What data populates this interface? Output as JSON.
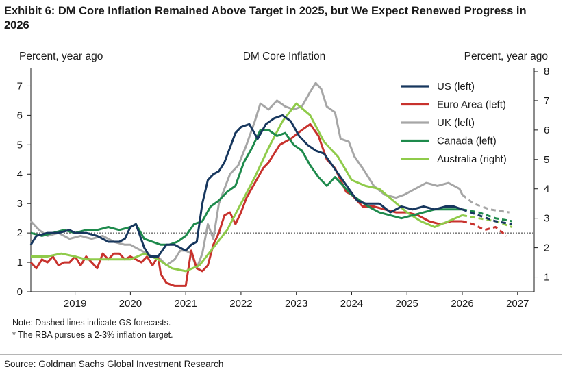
{
  "header": {
    "title": "Exhibit 6: DM Core Inflation Remained Above Target in 2025, but We Expect Renewed Progress in 2026"
  },
  "footer": {
    "source": "Source: Goldman Sachs Global Investment Research"
  },
  "notes": [
    "Note: Dashed lines indicate GS forecasts.",
    "* The RBA pursues a 2-3% inflation target."
  ],
  "colors": {
    "US": "#17375e",
    "Euro Area": "#c8322d",
    "UK": "#a6a6a6",
    "Canada": "#1e8a4c",
    "Australia": "#8fcb4a"
  },
  "chart_data": {
    "type": "line",
    "title": "DM Core Inflation",
    "ylabel_left": "Percent, year ago",
    "ylabel_right": "Percent, year ago",
    "x_ticks": [
      "2019",
      "2020",
      "2021",
      "2022",
      "2023",
      "2024",
      "2025",
      "2026",
      "2027"
    ],
    "xlim": [
      2018.2,
      2027.3
    ],
    "ylim_left": [
      0,
      7.5
    ],
    "ylim_right": [
      0.5,
      8
    ],
    "y_ticks_left": [
      0,
      1,
      2,
      3,
      4,
      5,
      6,
      7
    ],
    "y_ticks_right": [
      1,
      2,
      3,
      4,
      5,
      6,
      7,
      8
    ],
    "reference_line": {
      "axis": "left",
      "value": 2,
      "style": "dotted"
    },
    "legend_position": "top-right",
    "series": [
      {
        "name": "US (left)",
        "axis": "left",
        "color": "#17375e",
        "points": [
          [
            2018.2,
            1.6
          ],
          [
            2018.3,
            1.9
          ],
          [
            2018.5,
            2.0
          ],
          [
            2018.7,
            2.0
          ],
          [
            2018.9,
            2.1
          ],
          [
            2019.0,
            2.0
          ],
          [
            2019.2,
            2.0
          ],
          [
            2019.4,
            1.9
          ],
          [
            2019.6,
            1.7
          ],
          [
            2019.8,
            1.7
          ],
          [
            2019.9,
            1.8
          ],
          [
            2020.0,
            2.2
          ],
          [
            2020.1,
            2.3
          ],
          [
            2020.25,
            1.5
          ],
          [
            2020.35,
            1.2
          ],
          [
            2020.5,
            1.2
          ],
          [
            2020.65,
            1.6
          ],
          [
            2020.8,
            1.6
          ],
          [
            2021.0,
            1.4
          ],
          [
            2021.1,
            1.6
          ],
          [
            2021.2,
            1.7
          ],
          [
            2021.3,
            3.0
          ],
          [
            2021.4,
            3.8
          ],
          [
            2021.5,
            4.0
          ],
          [
            2021.6,
            4.1
          ],
          [
            2021.7,
            4.4
          ],
          [
            2021.8,
            4.9
          ],
          [
            2021.9,
            5.4
          ],
          [
            2022.0,
            5.6
          ],
          [
            2022.15,
            5.7
          ],
          [
            2022.3,
            5.2
          ],
          [
            2022.45,
            5.7
          ],
          [
            2022.6,
            5.9
          ],
          [
            2022.75,
            6.0
          ],
          [
            2022.9,
            5.8
          ],
          [
            2023.05,
            5.3
          ],
          [
            2023.2,
            5.0
          ],
          [
            2023.35,
            4.8
          ],
          [
            2023.5,
            4.7
          ],
          [
            2023.65,
            4.3
          ],
          [
            2023.8,
            3.9
          ],
          [
            2023.95,
            3.5
          ],
          [
            2024.1,
            3.1
          ],
          [
            2024.25,
            3.0
          ],
          [
            2024.5,
            3.0
          ],
          [
            2024.7,
            2.7
          ],
          [
            2024.9,
            2.9
          ],
          [
            2025.1,
            2.8
          ],
          [
            2025.3,
            2.9
          ],
          [
            2025.5,
            2.8
          ],
          [
            2025.7,
            2.9
          ],
          [
            2025.85,
            2.9
          ],
          [
            2026.0,
            2.8
          ]
        ],
        "forecast": [
          [
            2026.0,
            2.8
          ],
          [
            2026.3,
            2.6
          ],
          [
            2026.6,
            2.4
          ],
          [
            2026.9,
            2.3
          ]
        ]
      },
      {
        "name": "Euro Area (left)",
        "axis": "left",
        "color": "#c8322d",
        "points": [
          [
            2018.2,
            1.0
          ],
          [
            2018.3,
            0.8
          ],
          [
            2018.4,
            1.1
          ],
          [
            2018.5,
            1.0
          ],
          [
            2018.6,
            1.2
          ],
          [
            2018.7,
            0.9
          ],
          [
            2018.8,
            1.0
          ],
          [
            2018.9,
            1.0
          ],
          [
            2019.0,
            1.2
          ],
          [
            2019.1,
            0.9
          ],
          [
            2019.2,
            1.2
          ],
          [
            2019.3,
            1.0
          ],
          [
            2019.4,
            0.8
          ],
          [
            2019.5,
            1.3
          ],
          [
            2019.6,
            1.1
          ],
          [
            2019.7,
            1.3
          ],
          [
            2019.8,
            1.3
          ],
          [
            2019.9,
            1.1
          ],
          [
            2020.0,
            1.2
          ],
          [
            2020.1,
            1.1
          ],
          [
            2020.2,
            1.0
          ],
          [
            2020.3,
            1.2
          ],
          [
            2020.4,
            0.9
          ],
          [
            2020.5,
            1.2
          ],
          [
            2020.55,
            0.6
          ],
          [
            2020.65,
            0.3
          ],
          [
            2020.8,
            0.2
          ],
          [
            2021.0,
            0.2
          ],
          [
            2021.1,
            1.4
          ],
          [
            2021.2,
            0.8
          ],
          [
            2021.3,
            0.7
          ],
          [
            2021.4,
            0.9
          ],
          [
            2021.5,
            1.6
          ],
          [
            2021.6,
            2.0
          ],
          [
            2021.7,
            2.6
          ],
          [
            2021.8,
            2.7
          ],
          [
            2021.9,
            2.3
          ],
          [
            2022.0,
            2.7
          ],
          [
            2022.1,
            3.2
          ],
          [
            2022.25,
            3.7
          ],
          [
            2022.4,
            4.2
          ],
          [
            2022.5,
            4.4
          ],
          [
            2022.7,
            5.0
          ],
          [
            2022.9,
            5.2
          ],
          [
            2023.1,
            5.5
          ],
          [
            2023.25,
            5.7
          ],
          [
            2023.4,
            5.3
          ],
          [
            2023.55,
            4.5
          ],
          [
            2023.7,
            4.2
          ],
          [
            2023.9,
            3.4
          ],
          [
            2024.0,
            3.3
          ],
          [
            2024.2,
            2.9
          ],
          [
            2024.4,
            2.9
          ],
          [
            2024.6,
            2.8
          ],
          [
            2024.8,
            2.7
          ],
          [
            2025.0,
            2.7
          ],
          [
            2025.2,
            2.6
          ],
          [
            2025.4,
            2.4
          ],
          [
            2025.6,
            2.3
          ],
          [
            2025.8,
            2.4
          ],
          [
            2026.0,
            2.4
          ]
        ],
        "forecast": [
          [
            2026.0,
            2.4
          ],
          [
            2026.2,
            2.3
          ],
          [
            2026.4,
            2.1
          ],
          [
            2026.6,
            2.2
          ],
          [
            2026.8,
            1.9
          ]
        ]
      },
      {
        "name": "UK (left)",
        "axis": "left",
        "color": "#a6a6a6",
        "points": [
          [
            2018.2,
            2.4
          ],
          [
            2018.35,
            2.1
          ],
          [
            2018.5,
            1.9
          ],
          [
            2018.7,
            2.0
          ],
          [
            2018.9,
            1.8
          ],
          [
            2019.1,
            1.9
          ],
          [
            2019.3,
            1.8
          ],
          [
            2019.5,
            1.9
          ],
          [
            2019.7,
            1.7
          ],
          [
            2019.9,
            1.6
          ],
          [
            2020.0,
            1.6
          ],
          [
            2020.2,
            1.4
          ],
          [
            2020.4,
            1.2
          ],
          [
            2020.55,
            1.1
          ],
          [
            2020.65,
            0.9
          ],
          [
            2020.8,
            1.1
          ],
          [
            2020.9,
            1.4
          ],
          [
            2021.0,
            1.4
          ],
          [
            2021.1,
            1.3
          ],
          [
            2021.2,
            0.8
          ],
          [
            2021.3,
            1.3
          ],
          [
            2021.4,
            2.3
          ],
          [
            2021.5,
            1.8
          ],
          [
            2021.6,
            3.0
          ],
          [
            2021.7,
            3.5
          ],
          [
            2021.8,
            4.0
          ],
          [
            2021.95,
            4.3
          ],
          [
            2022.1,
            5.0
          ],
          [
            2022.25,
            5.8
          ],
          [
            2022.35,
            6.4
          ],
          [
            2022.5,
            6.2
          ],
          [
            2022.65,
            6.5
          ],
          [
            2022.8,
            6.3
          ],
          [
            2022.95,
            6.2
          ],
          [
            2023.1,
            6.3
          ],
          [
            2023.25,
            6.8
          ],
          [
            2023.35,
            7.1
          ],
          [
            2023.45,
            6.9
          ],
          [
            2023.55,
            6.3
          ],
          [
            2023.7,
            6.1
          ],
          [
            2023.8,
            5.2
          ],
          [
            2023.95,
            5.1
          ],
          [
            2024.05,
            4.6
          ],
          [
            2024.2,
            4.2
          ],
          [
            2024.4,
            3.6
          ],
          [
            2024.6,
            3.3
          ],
          [
            2024.8,
            3.2
          ],
          [
            2024.95,
            3.3
          ],
          [
            2025.15,
            3.5
          ],
          [
            2025.35,
            3.7
          ],
          [
            2025.55,
            3.6
          ],
          [
            2025.75,
            3.7
          ],
          [
            2025.95,
            3.5
          ],
          [
            2026.0,
            3.3
          ]
        ],
        "forecast": [
          [
            2026.0,
            3.3
          ],
          [
            2026.2,
            3.0
          ],
          [
            2026.5,
            2.8
          ],
          [
            2026.85,
            2.7
          ]
        ]
      },
      {
        "name": "Canada (left)",
        "axis": "left",
        "color": "#1e8a4c",
        "points": [
          [
            2018.2,
            2.0
          ],
          [
            2018.4,
            1.9
          ],
          [
            2018.6,
            2.0
          ],
          [
            2018.8,
            2.1
          ],
          [
            2019.0,
            2.0
          ],
          [
            2019.2,
            2.1
          ],
          [
            2019.4,
            2.1
          ],
          [
            2019.6,
            2.2
          ],
          [
            2019.8,
            2.1
          ],
          [
            2020.0,
            2.2
          ],
          [
            2020.1,
            2.3
          ],
          [
            2020.25,
            1.8
          ],
          [
            2020.4,
            1.7
          ],
          [
            2020.55,
            1.6
          ],
          [
            2020.7,
            1.6
          ],
          [
            2020.85,
            1.7
          ],
          [
            2021.0,
            1.9
          ],
          [
            2021.15,
            2.3
          ],
          [
            2021.3,
            2.4
          ],
          [
            2021.45,
            2.9
          ],
          [
            2021.6,
            3.1
          ],
          [
            2021.75,
            3.4
          ],
          [
            2021.9,
            3.6
          ],
          [
            2022.05,
            4.4
          ],
          [
            2022.2,
            4.9
          ],
          [
            2022.35,
            5.5
          ],
          [
            2022.5,
            5.5
          ],
          [
            2022.65,
            5.3
          ],
          [
            2022.8,
            5.4
          ],
          [
            2022.95,
            5.0
          ],
          [
            2023.1,
            4.8
          ],
          [
            2023.25,
            4.3
          ],
          [
            2023.4,
            3.9
          ],
          [
            2023.55,
            3.6
          ],
          [
            2023.7,
            3.9
          ],
          [
            2023.85,
            3.6
          ],
          [
            2024.0,
            3.3
          ],
          [
            2024.15,
            3.1
          ],
          [
            2024.3,
            2.9
          ],
          [
            2024.5,
            2.7
          ],
          [
            2024.7,
            2.6
          ],
          [
            2024.9,
            2.5
          ],
          [
            2025.1,
            2.6
          ],
          [
            2025.3,
            2.7
          ],
          [
            2025.5,
            2.8
          ],
          [
            2025.7,
            2.8
          ],
          [
            2025.9,
            2.8
          ],
          [
            2026.0,
            2.8
          ]
        ],
        "forecast": [
          [
            2026.0,
            2.8
          ],
          [
            2026.3,
            2.7
          ],
          [
            2026.6,
            2.5
          ],
          [
            2026.9,
            2.4
          ]
        ]
      },
      {
        "name": "Australia (right)",
        "axis": "right",
        "color": "#8fcb4a",
        "points": [
          [
            2018.2,
            1.7
          ],
          [
            2018.5,
            1.7
          ],
          [
            2018.75,
            1.8
          ],
          [
            2019.0,
            1.7
          ],
          [
            2019.2,
            1.6
          ],
          [
            2019.5,
            1.6
          ],
          [
            2019.75,
            1.6
          ],
          [
            2020.0,
            1.6
          ],
          [
            2020.25,
            1.8
          ],
          [
            2020.5,
            1.6
          ],
          [
            2020.75,
            1.3
          ],
          [
            2021.0,
            1.2
          ],
          [
            2021.25,
            1.4
          ],
          [
            2021.5,
            2.0
          ],
          [
            2021.75,
            2.6
          ],
          [
            2022.0,
            3.5
          ],
          [
            2022.25,
            4.4
          ],
          [
            2022.5,
            5.4
          ],
          [
            2022.75,
            6.3
          ],
          [
            2023.0,
            6.9
          ],
          [
            2023.25,
            6.5
          ],
          [
            2023.5,
            5.6
          ],
          [
            2023.75,
            5.1
          ],
          [
            2024.0,
            4.3
          ],
          [
            2024.25,
            4.1
          ],
          [
            2024.5,
            4.0
          ],
          [
            2024.75,
            3.6
          ],
          [
            2025.0,
            3.2
          ],
          [
            2025.25,
            2.9
          ],
          [
            2025.5,
            2.7
          ],
          [
            2025.75,
            2.9
          ],
          [
            2026.0,
            3.1
          ]
        ],
        "forecast": [
          [
            2026.0,
            3.1
          ],
          [
            2026.3,
            3.0
          ],
          [
            2026.6,
            2.9
          ],
          [
            2026.9,
            2.7
          ]
        ]
      }
    ]
  }
}
